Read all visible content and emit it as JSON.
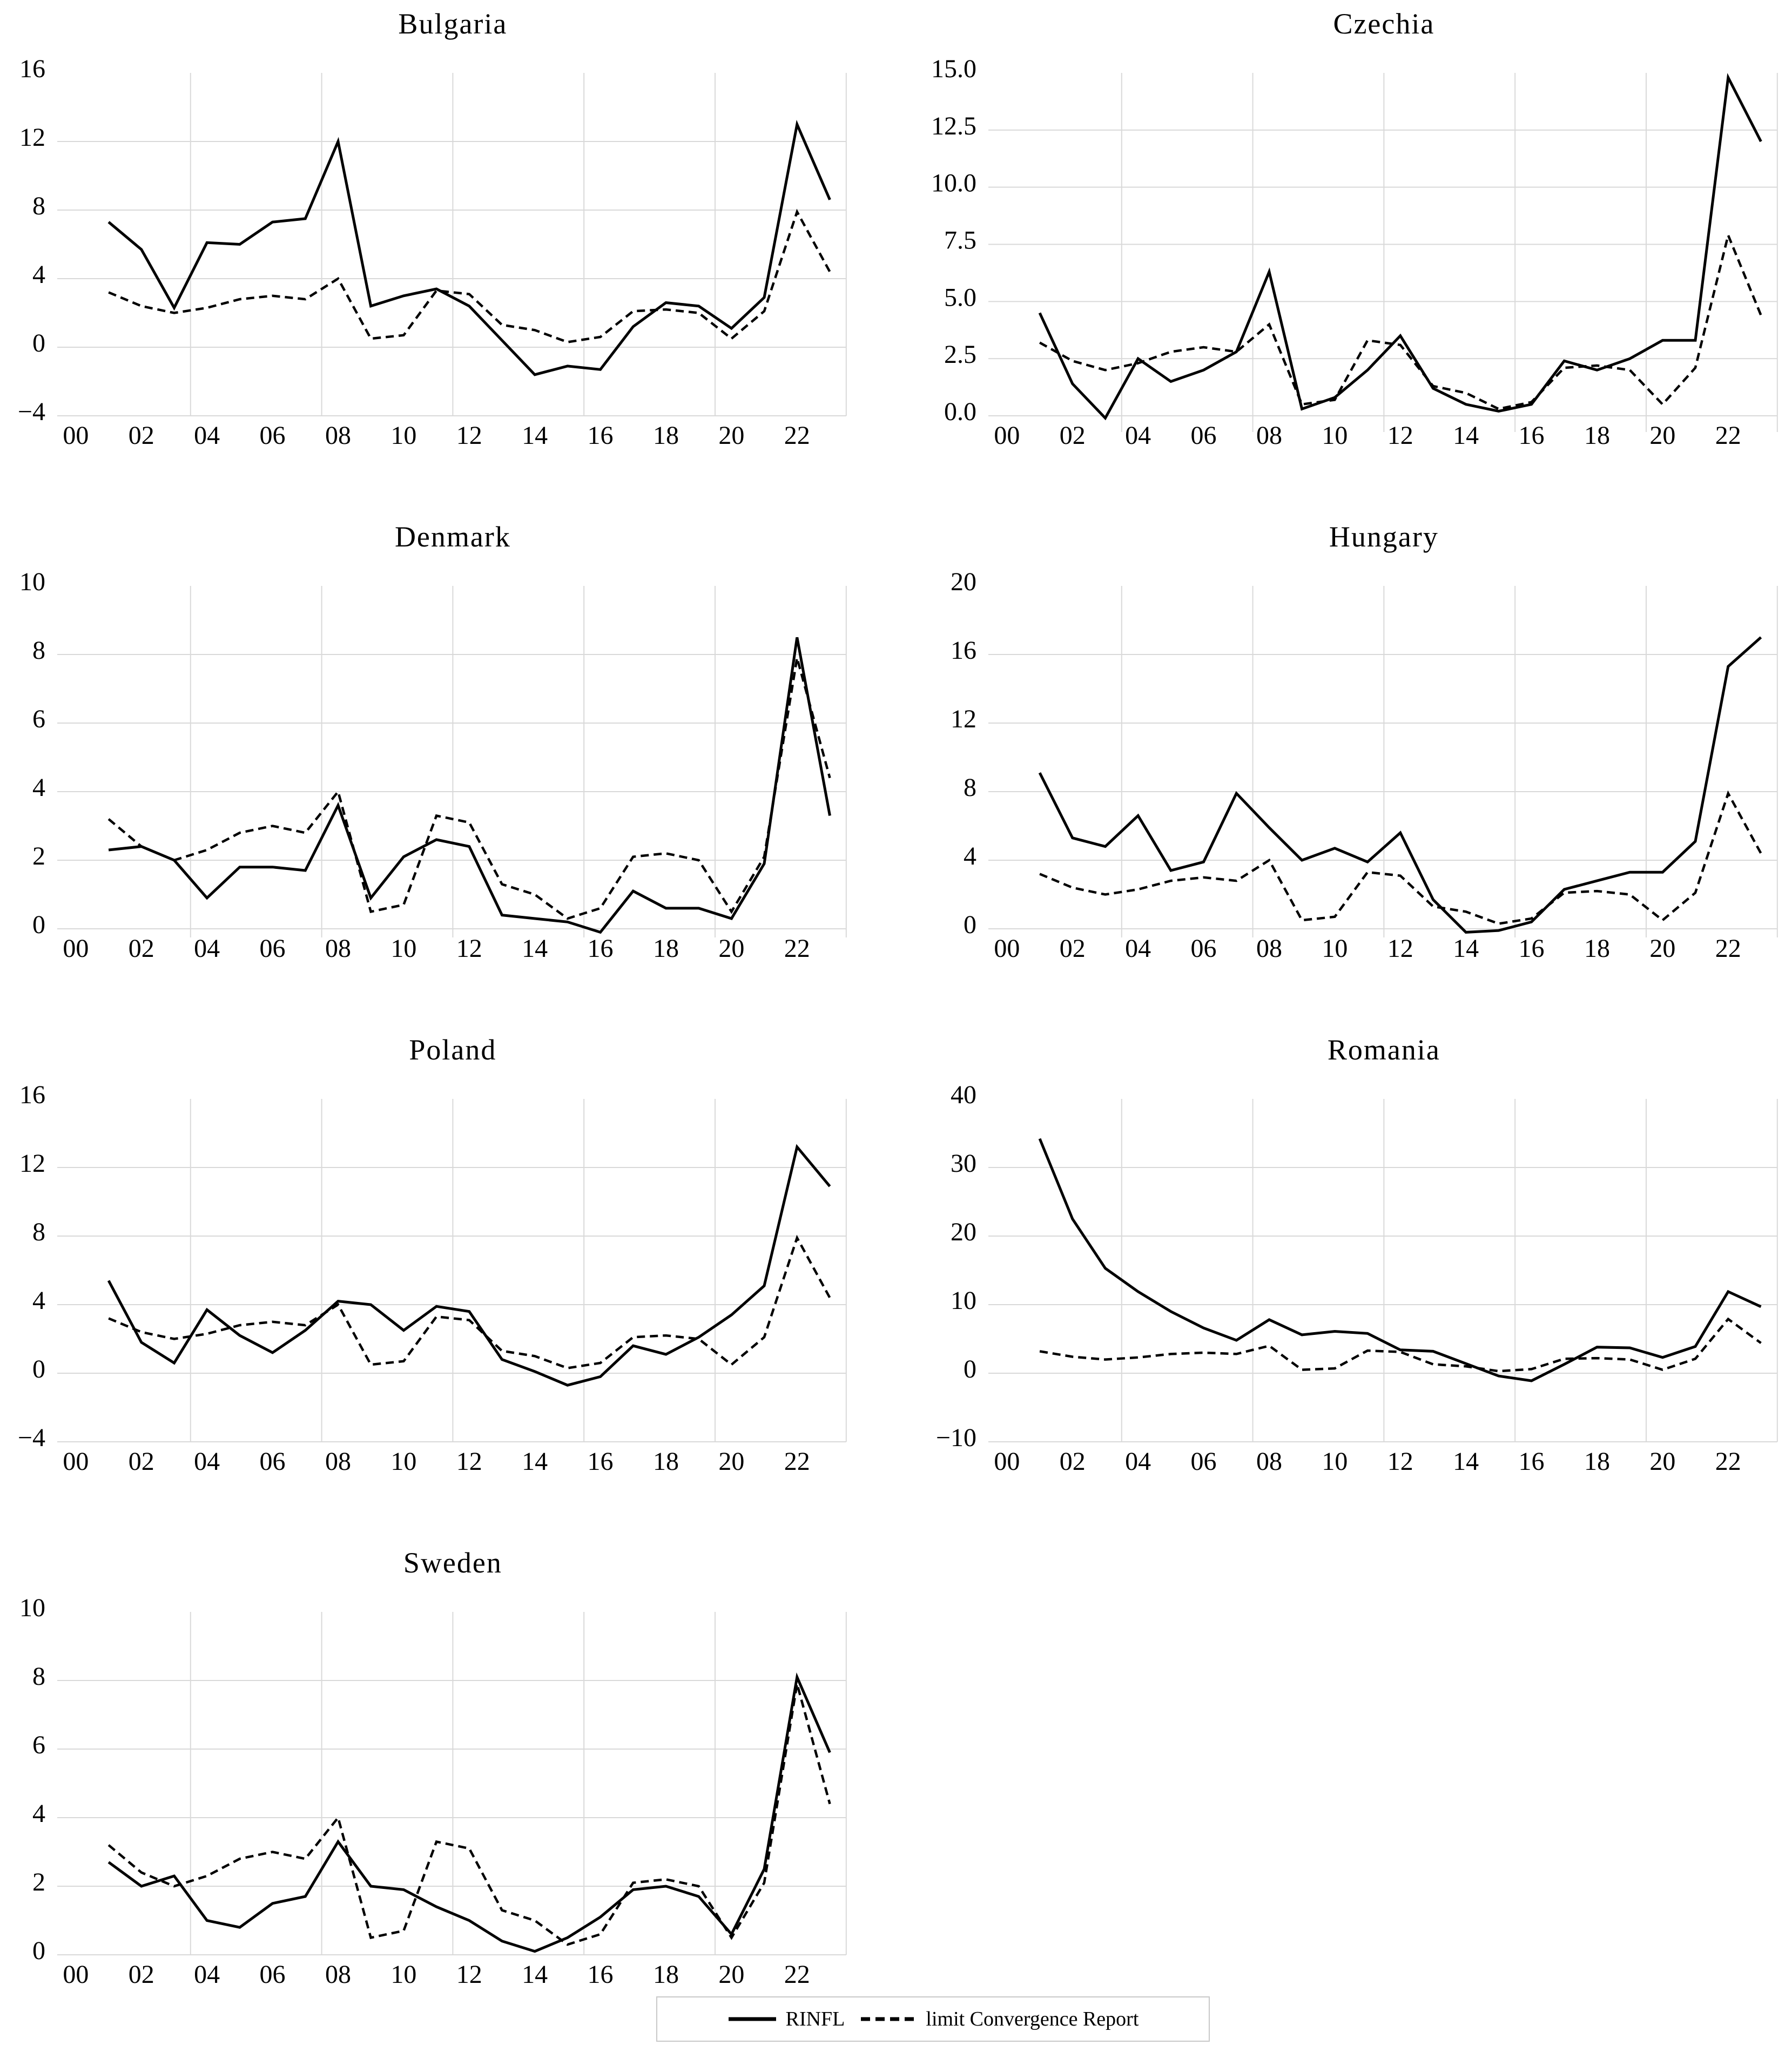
{
  "page": {
    "background": "#ffffff"
  },
  "style": {
    "line_color": "#000000",
    "grid_color": "#d9d9d9",
    "text_color": "#000000",
    "legend_border_color": "#c9c9c9"
  },
  "legend": {
    "rinfl_label": "RINFL",
    "limit_label": "limit Convergence Report",
    "rinfl_swatch": "solid-line",
    "limit_swatch": "dashed-line",
    "position": "bottom-center",
    "border": true
  },
  "chart_data": {
    "type": "line",
    "x_years": [
      2001,
      2002,
      2003,
      2004,
      2005,
      2006,
      2007,
      2008,
      2009,
      2010,
      2011,
      2012,
      2013,
      2014,
      2015,
      2016,
      2017,
      2018,
      2019,
      2020,
      2021,
      2022,
      2023
    ],
    "x_tick_labels": [
      "00",
      "02",
      "04",
      "06",
      "08",
      "10",
      "12",
      "14",
      "16",
      "18",
      "20",
      "22"
    ],
    "x_tick_years": [
      2000,
      2002,
      2004,
      2006,
      2008,
      2010,
      2012,
      2014,
      2016,
      2018,
      2020,
      2022
    ],
    "x_gridline_boundary_years": [
      2004,
      2008,
      2012,
      2016,
      2020,
      2024
    ],
    "grid": true,
    "legend_entries": [
      "RINFL",
      "limit Convergence Report"
    ],
    "limit_series_shared_across_charts": [
      3.2,
      2.4,
      2.0,
      2.3,
      2.8,
      3.0,
      2.8,
      4.0,
      0.5,
      0.7,
      3.3,
      3.1,
      1.3,
      1.0,
      0.3,
      0.6,
      2.1,
      2.2,
      2.0,
      0.5,
      2.1,
      7.9,
      4.4
    ],
    "charts": [
      {
        "title": "Bulgaria",
        "yticks": [
          16,
          12,
          8,
          4,
          0,
          -4
        ],
        "ytick_labels": [
          "16",
          "12",
          "8",
          "4",
          "0",
          "−4"
        ],
        "ylim": [
          -4,
          16
        ],
        "below_pad": 0,
        "rinfl": [
          7.3,
          5.7,
          2.3,
          6.1,
          6.0,
          7.3,
          7.5,
          12.0,
          2.4,
          3.0,
          3.4,
          2.4,
          0.4,
          -1.6,
          -1.1,
          -1.3,
          1.2,
          2.6,
          2.4,
          1.1,
          2.9,
          13.0,
          8.6
        ]
      },
      {
        "title": "Czechia",
        "yticks": [
          15.0,
          12.5,
          10.0,
          7.5,
          5.0,
          2.5,
          0.0
        ],
        "ytick_labels": [
          "15.0",
          "12.5",
          "10.0",
          "7.5",
          "5.0",
          "2.5",
          "0.0"
        ],
        "ylim": [
          0,
          15
        ],
        "below_pad": 30,
        "rinfl": [
          4.5,
          1.4,
          -0.1,
          2.5,
          1.5,
          2.0,
          2.8,
          6.3,
          0.3,
          0.8,
          2.0,
          3.5,
          1.2,
          0.5,
          0.2,
          0.5,
          2.4,
          2.0,
          2.5,
          3.3,
          3.3,
          14.8,
          12.0
        ]
      },
      {
        "title": "Denmark",
        "yticks": [
          10,
          8,
          6,
          4,
          2,
          0
        ],
        "ytick_labels": [
          "10",
          "8",
          "6",
          "4",
          "2",
          "0"
        ],
        "ylim": [
          0,
          10
        ],
        "below_pad": 16,
        "rinfl": [
          2.3,
          2.4,
          2.0,
          0.9,
          1.8,
          1.8,
          1.7,
          3.6,
          0.9,
          2.1,
          2.6,
          2.4,
          0.4,
          0.3,
          0.2,
          -0.1,
          1.1,
          0.6,
          0.6,
          0.3,
          1.9,
          8.5,
          3.3
        ]
      },
      {
        "title": "Hungary",
        "yticks": [
          20,
          16,
          12,
          8,
          4,
          0
        ],
        "ytick_labels": [
          "20",
          "16",
          "12",
          "8",
          "4",
          "0"
        ],
        "ylim": [
          0,
          20
        ],
        "below_pad": 16,
        "rinfl": [
          9.1,
          5.3,
          4.8,
          6.6,
          3.4,
          3.9,
          7.9,
          5.9,
          4.0,
          4.7,
          3.9,
          5.6,
          1.7,
          -0.2,
          -0.1,
          0.4,
          2.3,
          2.8,
          3.3,
          3.3,
          5.1,
          15.3,
          17.0
        ]
      },
      {
        "title": "Poland",
        "yticks": [
          16,
          12,
          8,
          4,
          0,
          -4
        ],
        "ytick_labels": [
          "16",
          "12",
          "8",
          "4",
          "0",
          "−4"
        ],
        "ylim": [
          -4,
          16
        ],
        "below_pad": 0,
        "rinfl": [
          5.4,
          1.8,
          0.6,
          3.7,
          2.2,
          1.2,
          2.5,
          4.2,
          4.0,
          2.5,
          3.9,
          3.6,
          0.8,
          0.1,
          -0.7,
          -0.2,
          1.6,
          1.1,
          2.1,
          3.4,
          5.1,
          13.2,
          10.9
        ]
      },
      {
        "title": "Romania",
        "yticks": [
          40,
          30,
          20,
          10,
          0,
          -10
        ],
        "ytick_labels": [
          "40",
          "30",
          "20",
          "10",
          "0",
          "−10"
        ],
        "ylim": [
          -10,
          40
        ],
        "below_pad": 0,
        "rinfl": [
          34.2,
          22.5,
          15.3,
          11.9,
          9.0,
          6.6,
          4.8,
          7.8,
          5.6,
          6.1,
          5.8,
          3.4,
          3.2,
          1.4,
          -0.4,
          -1.1,
          1.3,
          3.8,
          3.7,
          2.3,
          3.9,
          11.9,
          9.7
        ]
      },
      {
        "title": "Sweden",
        "yticks": [
          10,
          8,
          6,
          4,
          2,
          0
        ],
        "ytick_labels": [
          "10",
          "8",
          "6",
          "4",
          "2",
          "0"
        ],
        "ylim": [
          0,
          10
        ],
        "below_pad": 0,
        "rinfl": [
          2.7,
          2.0,
          2.3,
          1.0,
          0.8,
          1.5,
          1.7,
          3.3,
          2.0,
          1.9,
          1.4,
          1.0,
          0.4,
          0.1,
          0.5,
          1.1,
          1.9,
          2.0,
          1.7,
          0.6,
          2.5,
          8.1,
          5.9
        ]
      }
    ]
  }
}
